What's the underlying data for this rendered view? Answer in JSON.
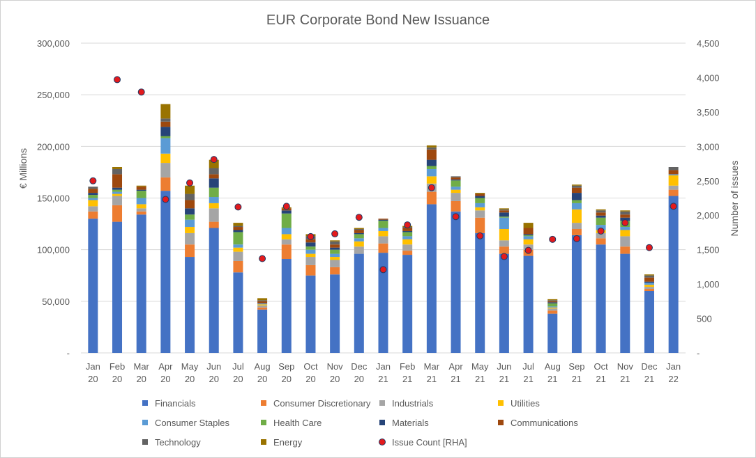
{
  "chart_data": {
    "type": "bar",
    "stacked": true,
    "title": "EUR Corporate Bond New Issuance",
    "ylabel": "€ Millions",
    "y2label": "Number of issues",
    "ylim": [
      0,
      300000
    ],
    "y2lim": [
      0,
      4500
    ],
    "y_ticks": [
      "-",
      "50,000",
      "100,000",
      "150,000",
      "200,000",
      "250,000",
      "300,000"
    ],
    "y2_ticks": [
      "-",
      "500",
      "1,000",
      "1,500",
      "2,000",
      "2,500",
      "3,000",
      "3,500",
      "4,000",
      "4,500"
    ],
    "categories": [
      [
        "Jan",
        "20"
      ],
      [
        "Feb",
        "20"
      ],
      [
        "Mar",
        "20"
      ],
      [
        "Apr",
        "20"
      ],
      [
        "May",
        "20"
      ],
      [
        "Jun",
        "20"
      ],
      [
        "Jul",
        "20"
      ],
      [
        "Aug",
        "20"
      ],
      [
        "Sep",
        "20"
      ],
      [
        "Oct",
        "20"
      ],
      [
        "Nov",
        "20"
      ],
      [
        "Dec",
        "20"
      ],
      [
        "Jan",
        "21"
      ],
      [
        "Feb",
        "21"
      ],
      [
        "Mar",
        "21"
      ],
      [
        "Apr",
        "21"
      ],
      [
        "May",
        "21"
      ],
      [
        "Jun",
        "21"
      ],
      [
        "Jul",
        "21"
      ],
      [
        "Aug",
        "21"
      ],
      [
        "Sep",
        "21"
      ],
      [
        "Oct",
        "21"
      ],
      [
        "Nov",
        "21"
      ],
      [
        "Dec",
        "21"
      ],
      [
        "Jan",
        "22"
      ]
    ],
    "grid": true,
    "legend_position": "bottom",
    "series": [
      {
        "name": "Financials",
        "color": "#4472C4",
        "values": [
          130000,
          127000,
          134000,
          157000,
          93000,
          121000,
          78000,
          42000,
          91000,
          75000,
          76000,
          96000,
          97000,
          95000,
          144000,
          137000,
          116000,
          96000,
          94000,
          38000,
          114000,
          105000,
          96000,
          60000,
          152000
        ]
      },
      {
        "name": "Consumer Discretionary",
        "color": "#ED7D31",
        "values": [
          7000,
          16000,
          3000,
          13000,
          12000,
          6000,
          11000,
          2000,
          14000,
          10000,
          7000,
          0,
          9000,
          4000,
          12000,
          10000,
          15000,
          7000,
          6000,
          3000,
          6000,
          6000,
          7000,
          2000,
          6000
        ]
      },
      {
        "name": "Industrials",
        "color": "#A5A5A5",
        "values": [
          5000,
          9000,
          3000,
          14000,
          11000,
          13000,
          9000,
          2000,
          5000,
          8000,
          7000,
          7000,
          7000,
          6000,
          8000,
          8000,
          7000,
          6000,
          5000,
          2000,
          6000,
          5000,
          10000,
          2000,
          4000
        ]
      },
      {
        "name": "Utilities",
        "color": "#FFC000",
        "values": [
          6000,
          2000,
          4000,
          9000,
          6000,
          5000,
          4000,
          1000,
          5000,
          3000,
          3000,
          5000,
          5000,
          5000,
          7000,
          3000,
          3000,
          11000,
          5000,
          1000,
          13000,
          3000,
          6000,
          2000,
          10000
        ]
      },
      {
        "name": "Consumer Staples",
        "color": "#5B9BD5",
        "values": [
          2000,
          2000,
          6000,
          15000,
          7000,
          6000,
          3000,
          1000,
          6000,
          4000,
          3000,
          3000,
          3000,
          3000,
          7000,
          3000,
          4000,
          11000,
          3000,
          1000,
          6000,
          5000,
          3000,
          2000,
          1000
        ]
      },
      {
        "name": "Health Care",
        "color": "#70AD47",
        "values": [
          3000,
          2000,
          7000,
          2000,
          5000,
          9000,
          12000,
          0,
          14000,
          3000,
          4000,
          4000,
          7000,
          4000,
          3000,
          6000,
          5000,
          1000,
          1000,
          3000,
          3000,
          7000,
          6000,
          0,
          0
        ]
      },
      {
        "name": "Materials",
        "color": "#264478",
        "values": [
          2000,
          2000,
          1000,
          9000,
          6000,
          9000,
          2000,
          0,
          3000,
          4000,
          2000,
          1000,
          1000,
          1000,
          6000,
          1000,
          2000,
          4000,
          1000,
          1000,
          7000,
          2000,
          3000,
          1000,
          0
        ]
      },
      {
        "name": "Communications",
        "color": "#9E480E",
        "values": [
          4000,
          13000,
          3000,
          5000,
          8000,
          4000,
          3000,
          2000,
          2000,
          3000,
          3000,
          3000,
          1000,
          3000,
          10000,
          2000,
          2000,
          2000,
          6000,
          1000,
          5000,
          3000,
          3000,
          4000,
          4000
        ]
      },
      {
        "name": "Technology",
        "color": "#636363",
        "values": [
          2000,
          5000,
          0,
          3000,
          6000,
          6000,
          1000,
          1000,
          0,
          3000,
          3000,
          1000,
          0,
          1000,
          2000,
          1000,
          0,
          1000,
          0,
          1000,
          2000,
          2000,
          3000,
          2000,
          3000
        ]
      },
      {
        "name": "Energy",
        "color": "#997300",
        "values": [
          0,
          2000,
          1000,
          14000,
          8000,
          8000,
          3000,
          2000,
          1000,
          2000,
          1000,
          1000,
          0,
          1000,
          2000,
          0,
          1000,
          1000,
          5000,
          1000,
          1000,
          1000,
          1000,
          1000,
          0
        ]
      }
    ],
    "line_series": {
      "name": "Issue Count [RHA]",
      "color": "#E31A1C",
      "values": [
        2500,
        3970,
        3790,
        2230,
        2470,
        2810,
        2120,
        1370,
        2130,
        1690,
        1730,
        1970,
        1210,
        1860,
        2400,
        1980,
        1700,
        1400,
        1490,
        1650,
        1660,
        1770,
        1890,
        1530,
        2130
      ]
    }
  }
}
